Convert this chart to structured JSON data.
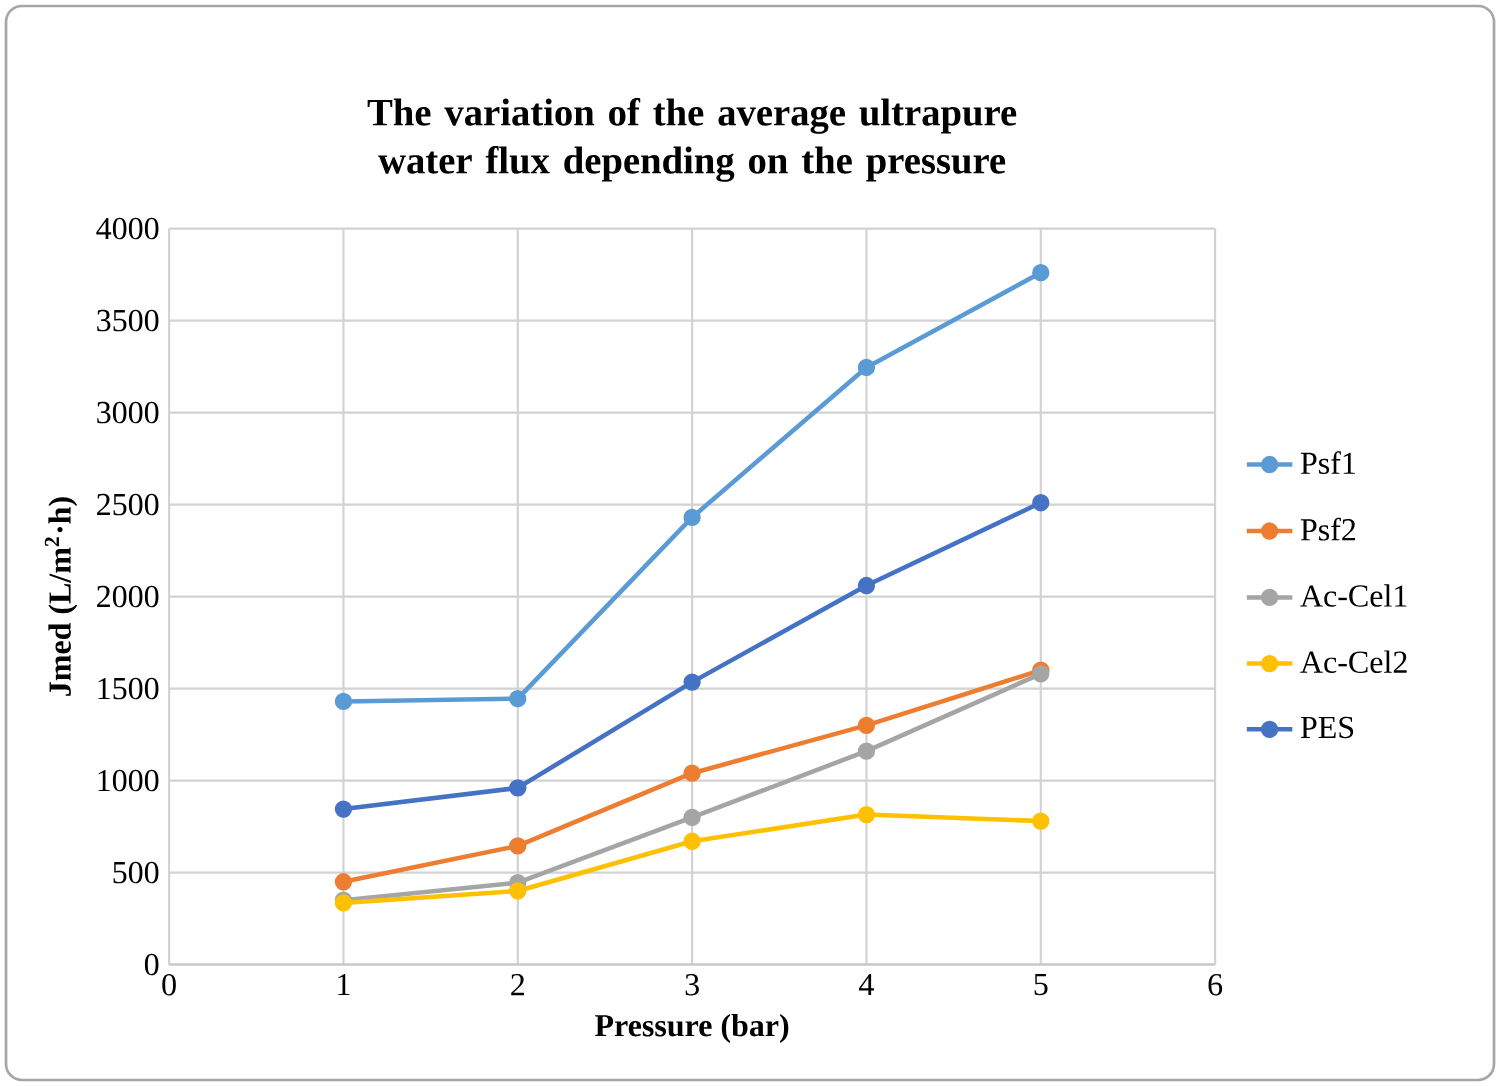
{
  "chart_data": {
    "type": "line",
    "title": "The variation of the average ultrapure water flux depending on the pressure",
    "xlabel": "Pressure (bar)",
    "ylabel": "Jmed (L/m$^{2}$·h)",
    "x": [
      1,
      2,
      3,
      4,
      5
    ],
    "series": [
      {
        "name": "Psf1",
        "color": "#5b9bd5",
        "values": [
          1430,
          1445,
          2430,
          3245,
          3760
        ]
      },
      {
        "name": "Psf2",
        "color": "#ed7d31",
        "values": [
          450,
          645,
          1040,
          1300,
          1600
        ]
      },
      {
        "name": "Ac-Cel1",
        "color": "#a5a5a5",
        "values": [
          350,
          445,
          800,
          1160,
          1580
        ]
      },
      {
        "name": "Ac-Cel2",
        "color": "#ffc000",
        "values": [
          335,
          400,
          670,
          815,
          780
        ]
      },
      {
        "name": "PES",
        "color": "#4472c4",
        "values": [
          845,
          960,
          1535,
          2060,
          2510
        ]
      }
    ],
    "xlim": [
      0,
      6
    ],
    "ylim": [
      0,
      4000
    ],
    "xticks": [
      0,
      1,
      2,
      3,
      4,
      5,
      6
    ],
    "yticks": [
      0,
      500,
      1000,
      1500,
      2000,
      2500,
      3000,
      3500,
      4000
    ],
    "grid": true,
    "legend": "right",
    "marker": "circle",
    "line_style": "solid"
  }
}
